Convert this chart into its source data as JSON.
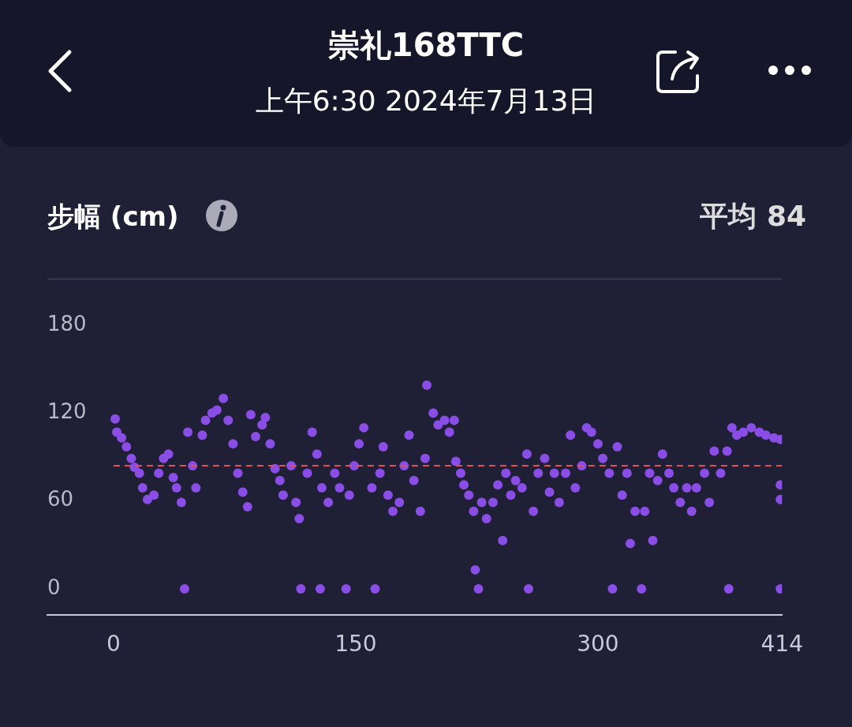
{
  "chart_data": {
    "type": "scatter",
    "title": "崇礼168TTC",
    "subtitle": "上午6:30 2024年7月13日",
    "ylabel": "步幅 (cm)",
    "annotations": [
      "平均 84"
    ],
    "ref_lines": [
      {
        "axis": "y",
        "value": 84,
        "color": "#e0505a",
        "line_style": "dashed"
      }
    ],
    "xlim": [
      -41,
      414
    ],
    "xticks": [
      0,
      150,
      300,
      414
    ],
    "ylim": [
      -18,
      212
    ],
    "yticks": [
      0,
      60,
      120,
      180
    ],
    "grid": false,
    "legend": false,
    "marker": "circle",
    "series": [
      {
        "color": "#8a4de6",
        "x": [
          1,
          2,
          5,
          8,
          11,
          13,
          16,
          18,
          21,
          25,
          28,
          31,
          34,
          37,
          39,
          42,
          44,
          46,
          49,
          51,
          55,
          57,
          61,
          64,
          68,
          71,
          74,
          77,
          80,
          83,
          85,
          88,
          92,
          94,
          97,
          100,
          103,
          105,
          110,
          113,
          115,
          116,
          120,
          123,
          126,
          128,
          129,
          133,
          137,
          140,
          144,
          146,
          149,
          152,
          155,
          160,
          162,
          165,
          167,
          170,
          173,
          177,
          180,
          183,
          186,
          190,
          193,
          194,
          198,
          201,
          205,
          208,
          211,
          212,
          215,
          217,
          220,
          223,
          224,
          226,
          228,
          231,
          235,
          238,
          241,
          243,
          246,
          249,
          253,
          256,
          257,
          260,
          263,
          267,
          270,
          273,
          276,
          280,
          283,
          286,
          290,
          293,
          296,
          300,
          303,
          307,
          309,
          312,
          315,
          318,
          320,
          323,
          327,
          329,
          332,
          334,
          337,
          340,
          344,
          347,
          351,
          355,
          358,
          361,
          366,
          369,
          372,
          376,
          380,
          381,
          383,
          386,
          390,
          395,
          400,
          404,
          409,
          413,
          413,
          413,
          413
        ],
        "values": [
          116,
          107,
          103,
          97,
          89,
          83,
          79,
          69,
          61,
          64,
          79,
          89,
          92,
          76,
          69,
          59,
          0,
          107,
          84,
          69,
          105,
          115,
          120,
          122,
          130,
          115,
          99,
          79,
          66,
          56,
          119,
          104,
          112,
          117,
          99,
          82,
          74,
          64,
          84,
          59,
          48,
          0,
          79,
          107,
          92,
          0,
          69,
          59,
          79,
          69,
          0,
          64,
          84,
          99,
          110,
          69,
          0,
          79,
          97,
          64,
          53,
          59,
          84,
          105,
          74,
          53,
          89,
          139,
          120,
          112,
          115,
          107,
          115,
          87,
          79,
          71,
          64,
          53,
          13,
          0,
          59,
          48,
          59,
          71,
          33,
          79,
          64,
          74,
          69,
          92,
          0,
          53,
          79,
          89,
          66,
          79,
          59,
          79,
          105,
          69,
          84,
          110,
          107,
          99,
          89,
          79,
          0,
          97,
          64,
          79,
          31,
          53,
          0,
          53,
          79,
          33,
          74,
          92,
          79,
          69,
          59,
          69,
          53,
          69,
          79,
          59,
          94,
          79,
          94,
          0,
          110,
          105,
          107,
          110,
          107,
          105,
          103,
          102,
          71,
          61,
          0
        ]
      }
    ]
  }
}
